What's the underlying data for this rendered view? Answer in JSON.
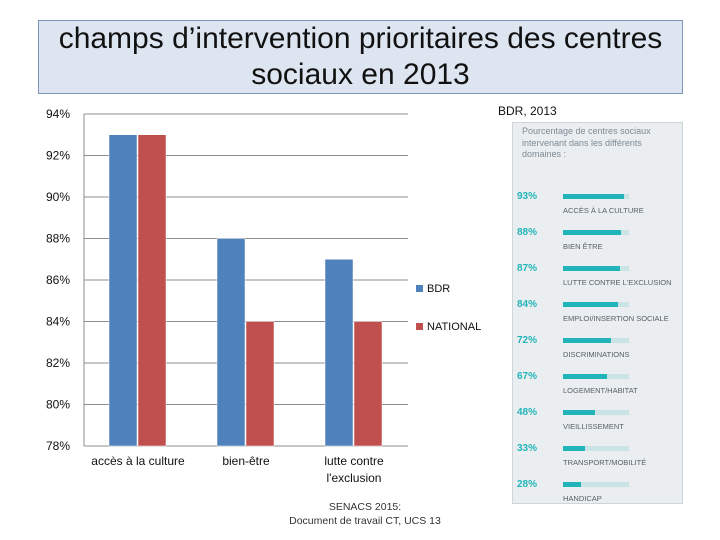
{
  "title": "champs d’intervention prioritaires des centres sociaux en 2013",
  "corner_label": "BDR, 2013",
  "footer": {
    "line1": "SENACS 2015:",
    "line2": "Document de travail CT,  UCS 13"
  },
  "chart_data": {
    "type": "bar",
    "categories": [
      "accès à la culture",
      "bien-être",
      "lutte contre l'exclusion"
    ],
    "series": [
      {
        "name": "BDR",
        "values": [
          93,
          88,
          87
        ],
        "color": "#4f81bd"
      },
      {
        "name": "NATIONAL",
        "values": [
          93,
          84,
          84
        ],
        "color": "#c0504d"
      }
    ],
    "ylim": [
      78,
      94
    ],
    "yticks": [
      78,
      80,
      82,
      84,
      86,
      88,
      90,
      92,
      94
    ],
    "ytick_labels": [
      "78%",
      "80%",
      "82%",
      "84%",
      "86%",
      "88%",
      "90%",
      "92%",
      "94%"
    ],
    "grid": true,
    "legend_position": "right"
  },
  "inset": {
    "header": "Pourcentage de centres sociaux intervenant dans les différents domaines :",
    "accent_color": "#21b5b9",
    "items": [
      {
        "pct_label": "93%",
        "value": 93,
        "label": "ACCÈS À LA CULTURE"
      },
      {
        "pct_label": "88%",
        "value": 88,
        "label": "BIEN ÊTRE"
      },
      {
        "pct_label": "87%",
        "value": 87,
        "label": "LUTTE CONTRE L'EXCLUSION"
      },
      {
        "pct_label": "84%",
        "value": 84,
        "label": "EMPLOI/INSERTION SOCIALE"
      },
      {
        "pct_label": "72%",
        "value": 72,
        "label": "DISCRIMINATIONS"
      },
      {
        "pct_label": "67%",
        "value": 67,
        "label": "LOGEMENT/HABITAT"
      },
      {
        "pct_label": "48%",
        "value": 48,
        "label": "VIEILLISSEMENT"
      },
      {
        "pct_label": "33%",
        "value": 33,
        "label": "TRANSPORT/MOBILITÉ"
      },
      {
        "pct_label": "28%",
        "value": 28,
        "label": "HANDICAP"
      }
    ]
  }
}
